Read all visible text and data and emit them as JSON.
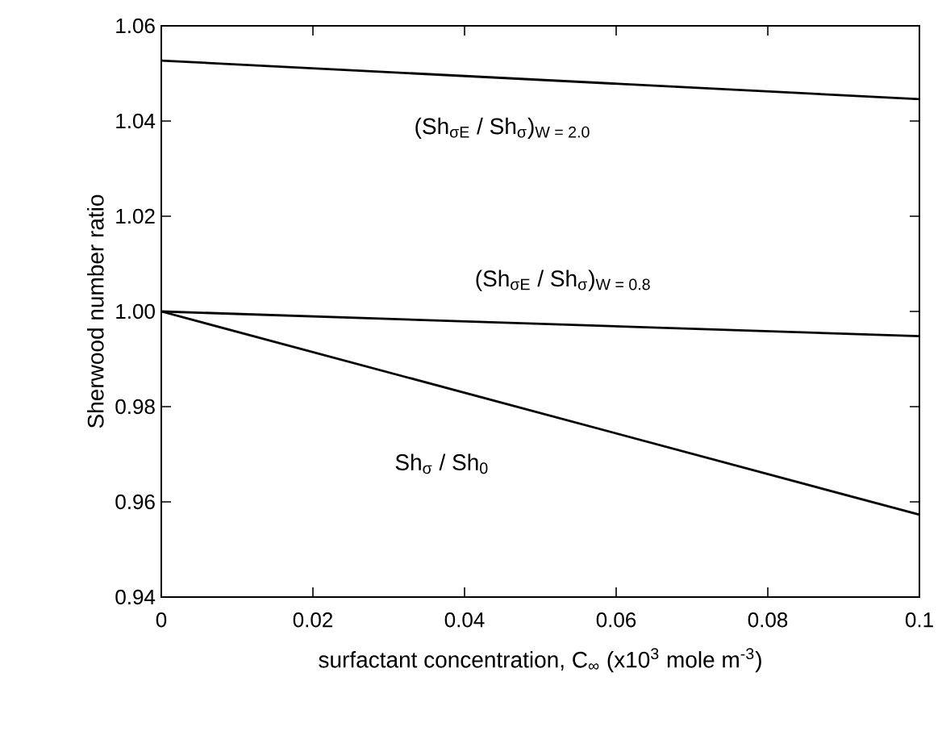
{
  "chart_data": {
    "type": "line",
    "xlabel": "surfactant concentration, C$_{∞}$ (x10$^{3}$ mole m$^{-3}$)",
    "ylabel": "Sherwood number ratio",
    "x": [
      0,
      0.1
    ],
    "series": [
      {
        "name": "(Sh$_{σE}$ / Sh$_{σ}$)$_{W = 2.0}$",
        "color": "#000000",
        "values": [
          1.0527,
          1.0446
        ]
      },
      {
        "name": "(Sh$_{σE}$ / Sh$_{σ}$)$_{W = 0.8}$",
        "color": "#000000",
        "values": [
          1.0,
          0.9948
        ]
      },
      {
        "name": "Sh$_{σ}$ / Sh$_{0}$",
        "color": "#000000",
        "values": [
          1.0,
          0.9573
        ]
      }
    ],
    "xlim": [
      0,
      0.1
    ],
    "ylim": [
      0.94,
      1.06
    ],
    "xticks": [
      0,
      0.02,
      0.04,
      0.06,
      0.08,
      0.1
    ],
    "yticks": [
      0.94,
      0.96,
      0.98,
      {
        "value": 1.0,
        "label": "1.00"
      },
      1.02,
      1.04,
      1.06
    ],
    "grid": false,
    "legend": false,
    "marker": "none",
    "line_style": "solid"
  }
}
